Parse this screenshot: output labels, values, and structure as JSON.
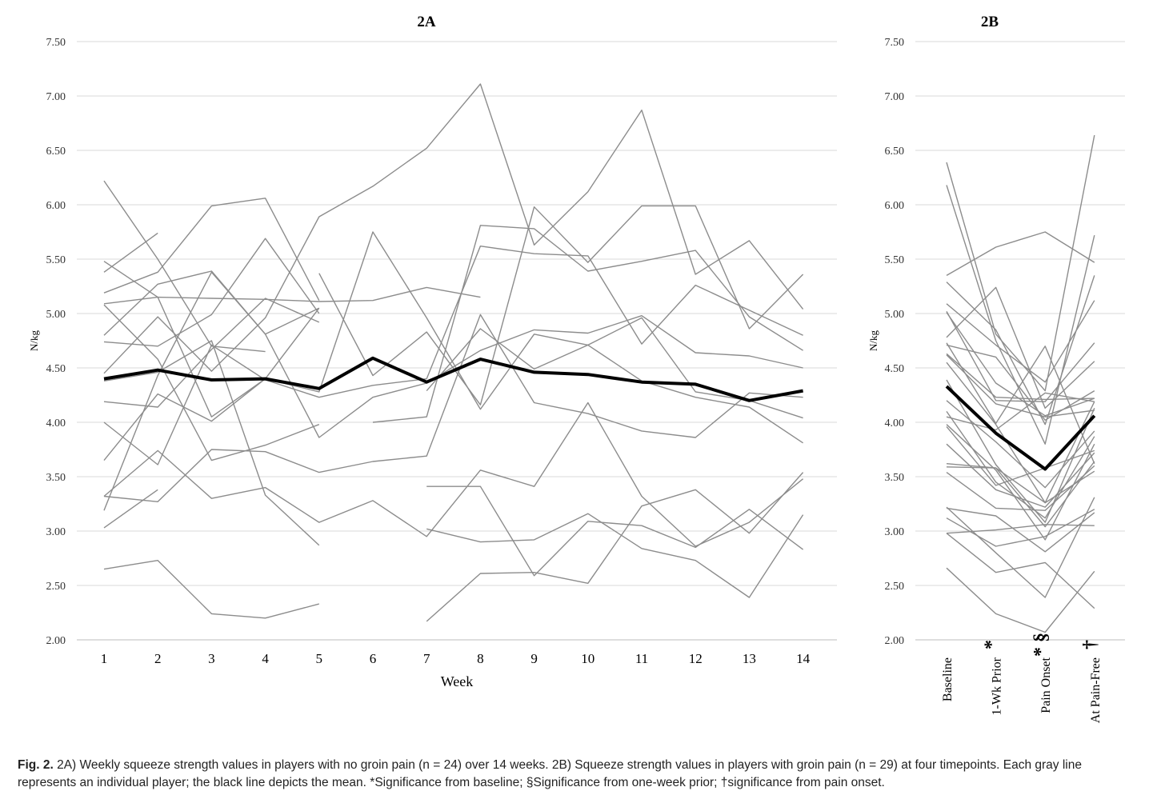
{
  "chart_data": [
    {
      "type": "line",
      "title": "2A",
      "xlabel": "Week",
      "ylabel": "N/kg",
      "ylim": [
        2.0,
        7.5
      ],
      "yticks": [
        "2.00",
        "2.50",
        "3.00",
        "3.50",
        "4.00",
        "4.50",
        "5.00",
        "5.50",
        "6.00",
        "6.50",
        "7.00",
        "7.50"
      ],
      "categories": [
        "1",
        "2",
        "3",
        "4",
        "5",
        "6",
        "7",
        "8",
        "9",
        "10",
        "11",
        "12",
        "13",
        "14"
      ],
      "grid": true,
      "mean_series": {
        "values": [
          4.4,
          4.48,
          4.39,
          4.4,
          4.31,
          4.59,
          4.37,
          4.58,
          4.46,
          4.44,
          4.37,
          4.35,
          4.2,
          4.29
        ],
        "color": "#000000"
      },
      "series": [
        {
          "values": [
            6.22,
            5.5,
            4.7,
            4.65,
            null,
            null,
            null,
            null,
            null,
            null,
            null,
            null,
            null,
            null
          ]
        },
        {
          "values": [
            5.38,
            5.74,
            null,
            null,
            null,
            null,
            null,
            null,
            null,
            null,
            null,
            null,
            null,
            null
          ]
        },
        {
          "values": [
            5.48,
            5.15,
            4.05,
            4.4,
            5.05,
            null,
            null,
            null,
            null,
            null,
            null,
            null,
            null,
            null
          ]
        },
        {
          "values": [
            5.19,
            5.38,
            5.99,
            6.06,
            5.12,
            null,
            null,
            null,
            null,
            null,
            null,
            null,
            null,
            null
          ]
        },
        {
          "values": [
            5.09,
            5.15,
            5.14,
            5.13,
            5.11,
            5.12,
            5.24,
            5.15,
            null,
            null,
            null,
            null,
            null,
            null
          ]
        },
        {
          "values": [
            4.8,
            5.27,
            5.39,
            4.81,
            5.05,
            null,
            null,
            null,
            null,
            null,
            null,
            null,
            null,
            null
          ]
        },
        {
          "values": [
            4.74,
            4.7,
            4.99,
            5.69,
            5.0,
            null,
            null,
            null,
            null,
            null,
            null,
            null,
            null,
            null
          ]
        },
        {
          "values": [
            4.45,
            4.97,
            4.47,
            4.96,
            5.89,
            6.17,
            6.52,
            7.11,
            5.63,
            6.12,
            6.87,
            5.36,
            5.67,
            5.04
          ]
        },
        {
          "values": [
            4.19,
            4.14,
            4.67,
            5.14,
            4.92,
            null,
            null,
            null,
            null,
            null,
            null,
            null,
            null,
            null
          ]
        },
        {
          "values": [
            4.0,
            3.61,
            4.71,
            4.39,
            4.23,
            4.34,
            4.4,
            5.62,
            5.55,
            5.53,
            4.72,
            5.26,
            5.03,
            4.8
          ]
        },
        {
          "values": [
            3.65,
            4.26,
            4.01,
            4.4,
            4.28,
            5.75,
            4.96,
            4.12,
            4.81,
            4.71,
            4.96,
            4.28,
            4.2,
            4.04
          ]
        },
        {
          "values": [
            3.32,
            3.74,
            3.3,
            3.4,
            3.08,
            3.28,
            2.95,
            3.56,
            3.41,
            4.18,
            3.32,
            2.86,
            3.08,
            3.48
          ]
        },
        {
          "values": [
            3.19,
            4.43,
            5.38,
            4.81,
            3.86,
            4.23,
            4.36,
            4.66,
            4.85,
            4.82,
            4.98,
            4.64,
            4.61,
            4.5
          ]
        },
        {
          "values": [
            3.03,
            3.38,
            null,
            null,
            null,
            null,
            null,
            null,
            null,
            null,
            null,
            null,
            null,
            null
          ]
        },
        {
          "values": [
            2.65,
            2.73,
            2.24,
            2.2,
            2.33,
            null,
            null,
            null,
            null,
            null,
            null,
            null,
            null,
            null
          ]
        },
        {
          "values": [
            3.32,
            3.27,
            3.75,
            3.73,
            3.54,
            3.64,
            3.69,
            4.99,
            4.18,
            4.08,
            3.92,
            3.86,
            4.27,
            4.23
          ]
        },
        {
          "values": [
            4.38,
            4.46,
            4.75,
            3.33,
            2.87,
            null,
            null,
            null,
            null,
            null,
            null,
            null,
            null,
            null
          ]
        },
        {
          "values": [
            5.08,
            4.58,
            3.65,
            3.79,
            3.98,
            null,
            null,
            null,
            null,
            null,
            null,
            null,
            null,
            null
          ]
        },
        {
          "values": [
            null,
            null,
            null,
            null,
            null,
            null,
            2.17,
            2.61,
            2.62,
            2.52,
            3.23,
            3.38,
            2.98,
            3.54
          ]
        },
        {
          "values": [
            null,
            null,
            null,
            null,
            null,
            null,
            3.41,
            3.41,
            2.59,
            3.09,
            3.05,
            2.85,
            3.2,
            2.83
          ]
        },
        {
          "values": [
            null,
            null,
            null,
            null,
            null,
            null,
            3.02,
            2.9,
            2.92,
            3.16,
            2.84,
            2.73,
            2.39,
            3.15
          ]
        },
        {
          "values": [
            null,
            null,
            null,
            null,
            5.37,
            4.43,
            4.83,
            4.16,
            5.98,
            5.47,
            5.99,
            5.99,
            4.86,
            5.36
          ]
        },
        {
          "values": [
            null,
            null,
            null,
            null,
            null,
            4.0,
            4.05,
            5.81,
            5.78,
            5.39,
            5.48,
            5.58,
            4.97,
            4.66
          ]
        },
        {
          "values": [
            null,
            null,
            null,
            null,
            null,
            null,
            4.29,
            4.86,
            4.49,
            4.71,
            4.38,
            4.23,
            4.14,
            3.81
          ]
        }
      ]
    },
    {
      "type": "line",
      "title": "2B",
      "ylabel": "N/kg",
      "ylim": [
        2.0,
        7.5
      ],
      "yticks": [
        "2.00",
        "2.50",
        "3.00",
        "3.50",
        "4.00",
        "4.50",
        "5.00",
        "5.50",
        "6.00",
        "6.50",
        "7.00",
        "7.50"
      ],
      "categories": [
        "Baseline",
        "1-Wk Prior",
        "Pain Onset",
        "At Pain-Free"
      ],
      "category_marks": [
        "",
        "*",
        "* §",
        "†"
      ],
      "grid": true,
      "mean_series": {
        "values": [
          4.33,
          3.9,
          3.57,
          4.06
        ],
        "color": "#000000"
      },
      "series": [
        {
          "values": [
            6.39,
            4.81,
            4.29,
            6.64
          ]
        },
        {
          "values": [
            6.18,
            4.75,
            3.8,
            5.72
          ]
        },
        {
          "values": [
            5.35,
            5.61,
            5.75,
            5.47
          ]
        },
        {
          "values": [
            5.29,
            4.85,
            3.98,
            5.35
          ]
        },
        {
          "values": [
            5.09,
            4.71,
            4.37,
            5.12
          ]
        },
        {
          "values": [
            5.02,
            4.2,
            4.19,
            4.73
          ]
        },
        {
          "values": [
            4.78,
            5.24,
            4.13,
            4.56
          ]
        },
        {
          "values": [
            4.73,
            3.99,
            4.7,
            3.62
          ]
        },
        {
          "values": [
            4.71,
            4.6,
            4.02,
            4.29
          ]
        },
        {
          "values": [
            4.63,
            4.23,
            4.21,
            4.22
          ]
        },
        {
          "values": [
            4.55,
            3.98,
            3.26,
            4.19
          ]
        },
        {
          "values": [
            4.39,
            3.61,
            3.08,
            4.13
          ]
        },
        {
          "values": [
            4.2,
            3.82,
            3.4,
            3.92
          ]
        },
        {
          "values": [
            4.1,
            3.45,
            3.12,
            3.87
          ]
        },
        {
          "values": [
            3.98,
            3.56,
            2.92,
            3.8
          ]
        },
        {
          "values": [
            3.8,
            3.38,
            3.22,
            3.72
          ]
        },
        {
          "values": [
            3.62,
            3.58,
            3.04,
            3.64
          ]
        },
        {
          "values": [
            3.54,
            3.21,
            3.19,
            3.6
          ]
        },
        {
          "values": [
            3.59,
            3.58,
            3.26,
            3.55
          ]
        },
        {
          "values": [
            3.21,
            3.14,
            2.81,
            3.17
          ]
        },
        {
          "values": [
            3.12,
            2.86,
            2.95,
            3.2
          ]
        },
        {
          "values": [
            2.98,
            3.01,
            3.06,
            3.05
          ]
        },
        {
          "values": [
            2.98,
            2.62,
            2.71,
            2.29
          ]
        },
        {
          "values": [
            2.66,
            2.24,
            2.07,
            2.63
          ]
        },
        {
          "values": [
            3.22,
            2.8,
            2.39,
            3.31
          ]
        },
        {
          "values": [
            4.05,
            3.93,
            4.27,
            4.19
          ]
        },
        {
          "values": [
            3.96,
            3.42,
            3.58,
            3.74
          ]
        },
        {
          "values": [
            4.62,
            4.17,
            4.05,
            4.11
          ]
        },
        {
          "values": [
            5.01,
            4.36,
            4.06,
            4.22
          ]
        }
      ]
    }
  ],
  "caption": {
    "label": "Fig. 2.",
    "text": " 2A) Weekly squeeze strength values in players with no groin pain (n = 24) over 14 weeks. 2B) Squeeze strength values in players with groin pain (n = 29) at four timepoints. Each gray line represents an individual player; the black line depicts the mean. *Significance from baseline; §Significance from one-week prior; †significance from pain onset."
  },
  "colors": {
    "individual": "#8c8c8c",
    "mean": "#000000",
    "grid": "#d9d9d9"
  }
}
